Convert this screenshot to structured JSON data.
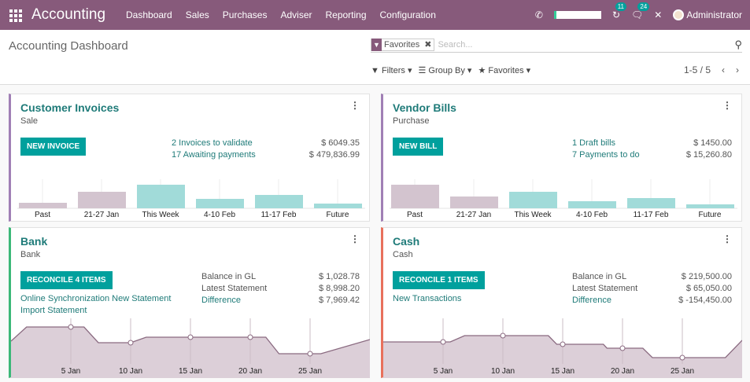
{
  "navbar": {
    "app_name": "Accounting",
    "menu": [
      "Dashboard",
      "Sales",
      "Purchases",
      "Adviser",
      "Reporting",
      "Configuration"
    ],
    "activity_count": "11",
    "message_count": "24",
    "user": "Administrator",
    "color": "#875A7B"
  },
  "control_panel": {
    "title": "Accounting Dashboard",
    "facet_label": "Favorites",
    "search_placeholder": "Search...",
    "filters": "Filters",
    "group_by": "Group By",
    "favorites": "Favorites",
    "pager": "1-5 / 5"
  },
  "cards": {
    "invoices": {
      "title": "Customer Invoices",
      "subtitle": "Sale",
      "button": "NEW INVOICE",
      "links": [
        {
          "label": "2 Invoices to validate",
          "amount": "$ 6049.35"
        },
        {
          "label": "17 Awaiting payments",
          "amount": "$ 479,836.99"
        }
      ],
      "chart": {
        "type": "bar",
        "categories": [
          "Past",
          "21-27 Jan",
          "This Week",
          "4-10 Feb",
          "11-17 Feb",
          "Future"
        ],
        "values": [
          7,
          21,
          30,
          12,
          17,
          6
        ],
        "colors": [
          "#d3c4cf",
          "#d3c4cf",
          "#a1dbd9",
          "#a1dbd9",
          "#a1dbd9",
          "#a1dbd9"
        ]
      }
    },
    "bills": {
      "title": "Vendor Bills",
      "subtitle": "Purchase",
      "button": "NEW BILL",
      "links": [
        {
          "label": "1 Draft bills",
          "amount": "$ 1450.00"
        },
        {
          "label": "7 Payments to do",
          "amount": "$ 15,260.80"
        }
      ],
      "chart": {
        "type": "bar",
        "categories": [
          "Past",
          "21-27 Jan",
          "This Week",
          "4-10 Feb",
          "11-17 Feb",
          "Future"
        ],
        "values": [
          30,
          15,
          21,
          9,
          13,
          5
        ],
        "colors": [
          "#d3c4cf",
          "#d3c4cf",
          "#a1dbd9",
          "#a1dbd9",
          "#a1dbd9",
          "#a1dbd9"
        ]
      }
    },
    "bank": {
      "title": "Bank",
      "subtitle": "Bank",
      "button": "RECONCILE 4 ITEMS",
      "links": [
        "Online Synchronization New Statement",
        "Import Statement"
      ],
      "balance_label": "Balance in GL",
      "balance": "$ 1,028.78",
      "latest_label": "Latest Statement",
      "latest": "$ 8,998.20",
      "diff_label": "Difference",
      "diff": "$ 7,969.42",
      "chart": {
        "type": "area",
        "x_ticks": [
          {
            "day": 5,
            "label": "5 Jan"
          },
          {
            "day": 10,
            "label": "10 Jan"
          },
          {
            "day": 15,
            "label": "15 Jan"
          },
          {
            "day": 20,
            "label": "20 Jan"
          },
          {
            "day": 25,
            "label": "25 Jan"
          }
        ],
        "points": [
          [
            0,
            47
          ],
          [
            1.3,
            65
          ],
          [
            5,
            65
          ],
          [
            6.1,
            65
          ],
          [
            7.3,
            45
          ],
          [
            10,
            45
          ],
          [
            11.3,
            52
          ],
          [
            15,
            52
          ],
          [
            20,
            52
          ],
          [
            21.3,
            52
          ],
          [
            22.4,
            31
          ],
          [
            25,
            31
          ],
          [
            25.9,
            31
          ],
          [
            30,
            49
          ]
        ],
        "markers": [
          5,
          10,
          15,
          20,
          25
        ]
      }
    },
    "cash": {
      "title": "Cash",
      "subtitle": "Cash",
      "button": "RECONCILE 1 ITEMS",
      "links": [
        "New Transactions"
      ],
      "balance_label": "Balance in GL",
      "balance": "$ 219,500.00",
      "latest_label": "Latest Statement",
      "latest": "$ 65,050.00",
      "diff_label": "Difference",
      "diff": "$ -154,450.00",
      "chart": {
        "type": "area",
        "x_ticks": [
          {
            "day": 5,
            "label": "5 Jan"
          },
          {
            "day": 10,
            "label": "10 Jan"
          },
          {
            "day": 15,
            "label": "15 Jan"
          },
          {
            "day": 20,
            "label": "20 Jan"
          },
          {
            "day": 25,
            "label": "25 Jan"
          }
        ],
        "points": [
          [
            0,
            46
          ],
          [
            5,
            46
          ],
          [
            5.6,
            46
          ],
          [
            6.8,
            54
          ],
          [
            10,
            54
          ],
          [
            13.8,
            54
          ],
          [
            14.5,
            43
          ],
          [
            15,
            43
          ],
          [
            18.4,
            43
          ],
          [
            18.7,
            38
          ],
          [
            20,
            38
          ],
          [
            21.7,
            38
          ],
          [
            22.5,
            26
          ],
          [
            25,
            26
          ],
          [
            28.6,
            26
          ],
          [
            30,
            48
          ]
        ],
        "markers": [
          5,
          10,
          15,
          20,
          25
        ]
      }
    }
  }
}
